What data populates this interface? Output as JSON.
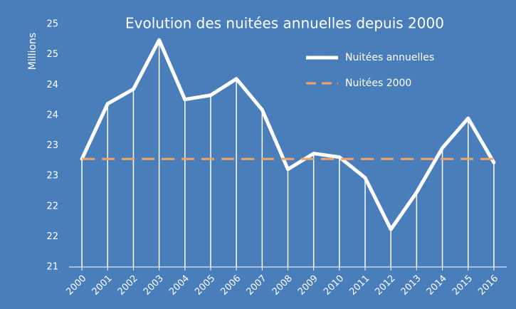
{
  "chart_data": {
    "type": "line",
    "title": "Evolution des nuitées annuelles depuis 2000",
    "y_label": "Millions",
    "categories": [
      "2000",
      "2001",
      "2002",
      "2003",
      "2004",
      "2005",
      "2006",
      "2007",
      "2008",
      "2009",
      "2010",
      "2011",
      "2012",
      "2013",
      "2014",
      "2015",
      "2016"
    ],
    "series": [
      {
        "name": "Nuitées annuelles",
        "color": "#ffffff",
        "style": "solid",
        "drop_lines": true,
        "values": [
          22.78,
          23.69,
          23.93,
          24.74,
          23.76,
          23.83,
          24.1,
          23.59,
          22.61,
          22.87,
          22.81,
          22.47,
          21.62,
          22.23,
          22.96,
          23.45,
          22.72
        ]
      },
      {
        "name": "Nuitées 2000",
        "color": "#f4a460",
        "style": "dashed",
        "values": [
          22.78,
          22.78,
          22.78,
          22.78,
          22.78,
          22.78,
          22.78,
          22.78,
          22.78,
          22.78,
          22.78,
          22.78,
          22.78,
          22.78,
          22.78,
          22.78,
          22.78
        ]
      }
    ],
    "ylim": [
      21,
      25
    ],
    "yticks": [
      21,
      {
        "value": 21.5,
        "label": "22"
      },
      22,
      {
        "value": 22.5,
        "label": "23"
      },
      23,
      {
        "value": 23.5,
        "label": "24"
      },
      24,
      {
        "value": 24.5,
        "label": "25"
      },
      25
    ],
    "legend": "top-right"
  }
}
